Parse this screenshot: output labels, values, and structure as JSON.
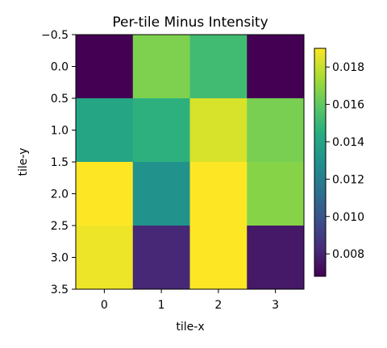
{
  "chart_data": {
    "type": "heatmap",
    "title": "Per-tile Minus Intensity",
    "xlabel": "tile-x",
    "ylabel": "tile-y",
    "x_tick_labels": [
      "0",
      "1",
      "2",
      "3"
    ],
    "y_tick_labels": [
      "−0.5",
      "0.0",
      "0.5",
      "1.0",
      "1.5",
      "2.0",
      "2.5",
      "3.0",
      "3.5"
    ],
    "y_tick_values": [
      -0.5,
      0.0,
      0.5,
      1.0,
      1.5,
      2.0,
      2.5,
      3.0,
      3.5
    ],
    "ylim": [
      3.5,
      -0.5
    ],
    "xlim": [
      -0.5,
      3.5
    ],
    "values": [
      [
        0.0068,
        0.0166,
        0.0152,
        0.0068
      ],
      [
        0.014,
        0.0146,
        0.0183,
        0.0165
      ],
      [
        0.019,
        0.013,
        0.019,
        0.0168
      ],
      [
        0.0187,
        0.0082,
        0.019,
        0.0076
      ]
    ],
    "colormap": "viridis",
    "colorbar": {
      "range": [
        0.0068,
        0.019
      ],
      "tick_values": [
        0.008,
        0.01,
        0.012,
        0.014,
        0.016,
        0.018
      ],
      "tick_labels": [
        "0.008",
        "0.010",
        "0.012",
        "0.014",
        "0.016",
        "0.018"
      ]
    },
    "grid": false
  }
}
